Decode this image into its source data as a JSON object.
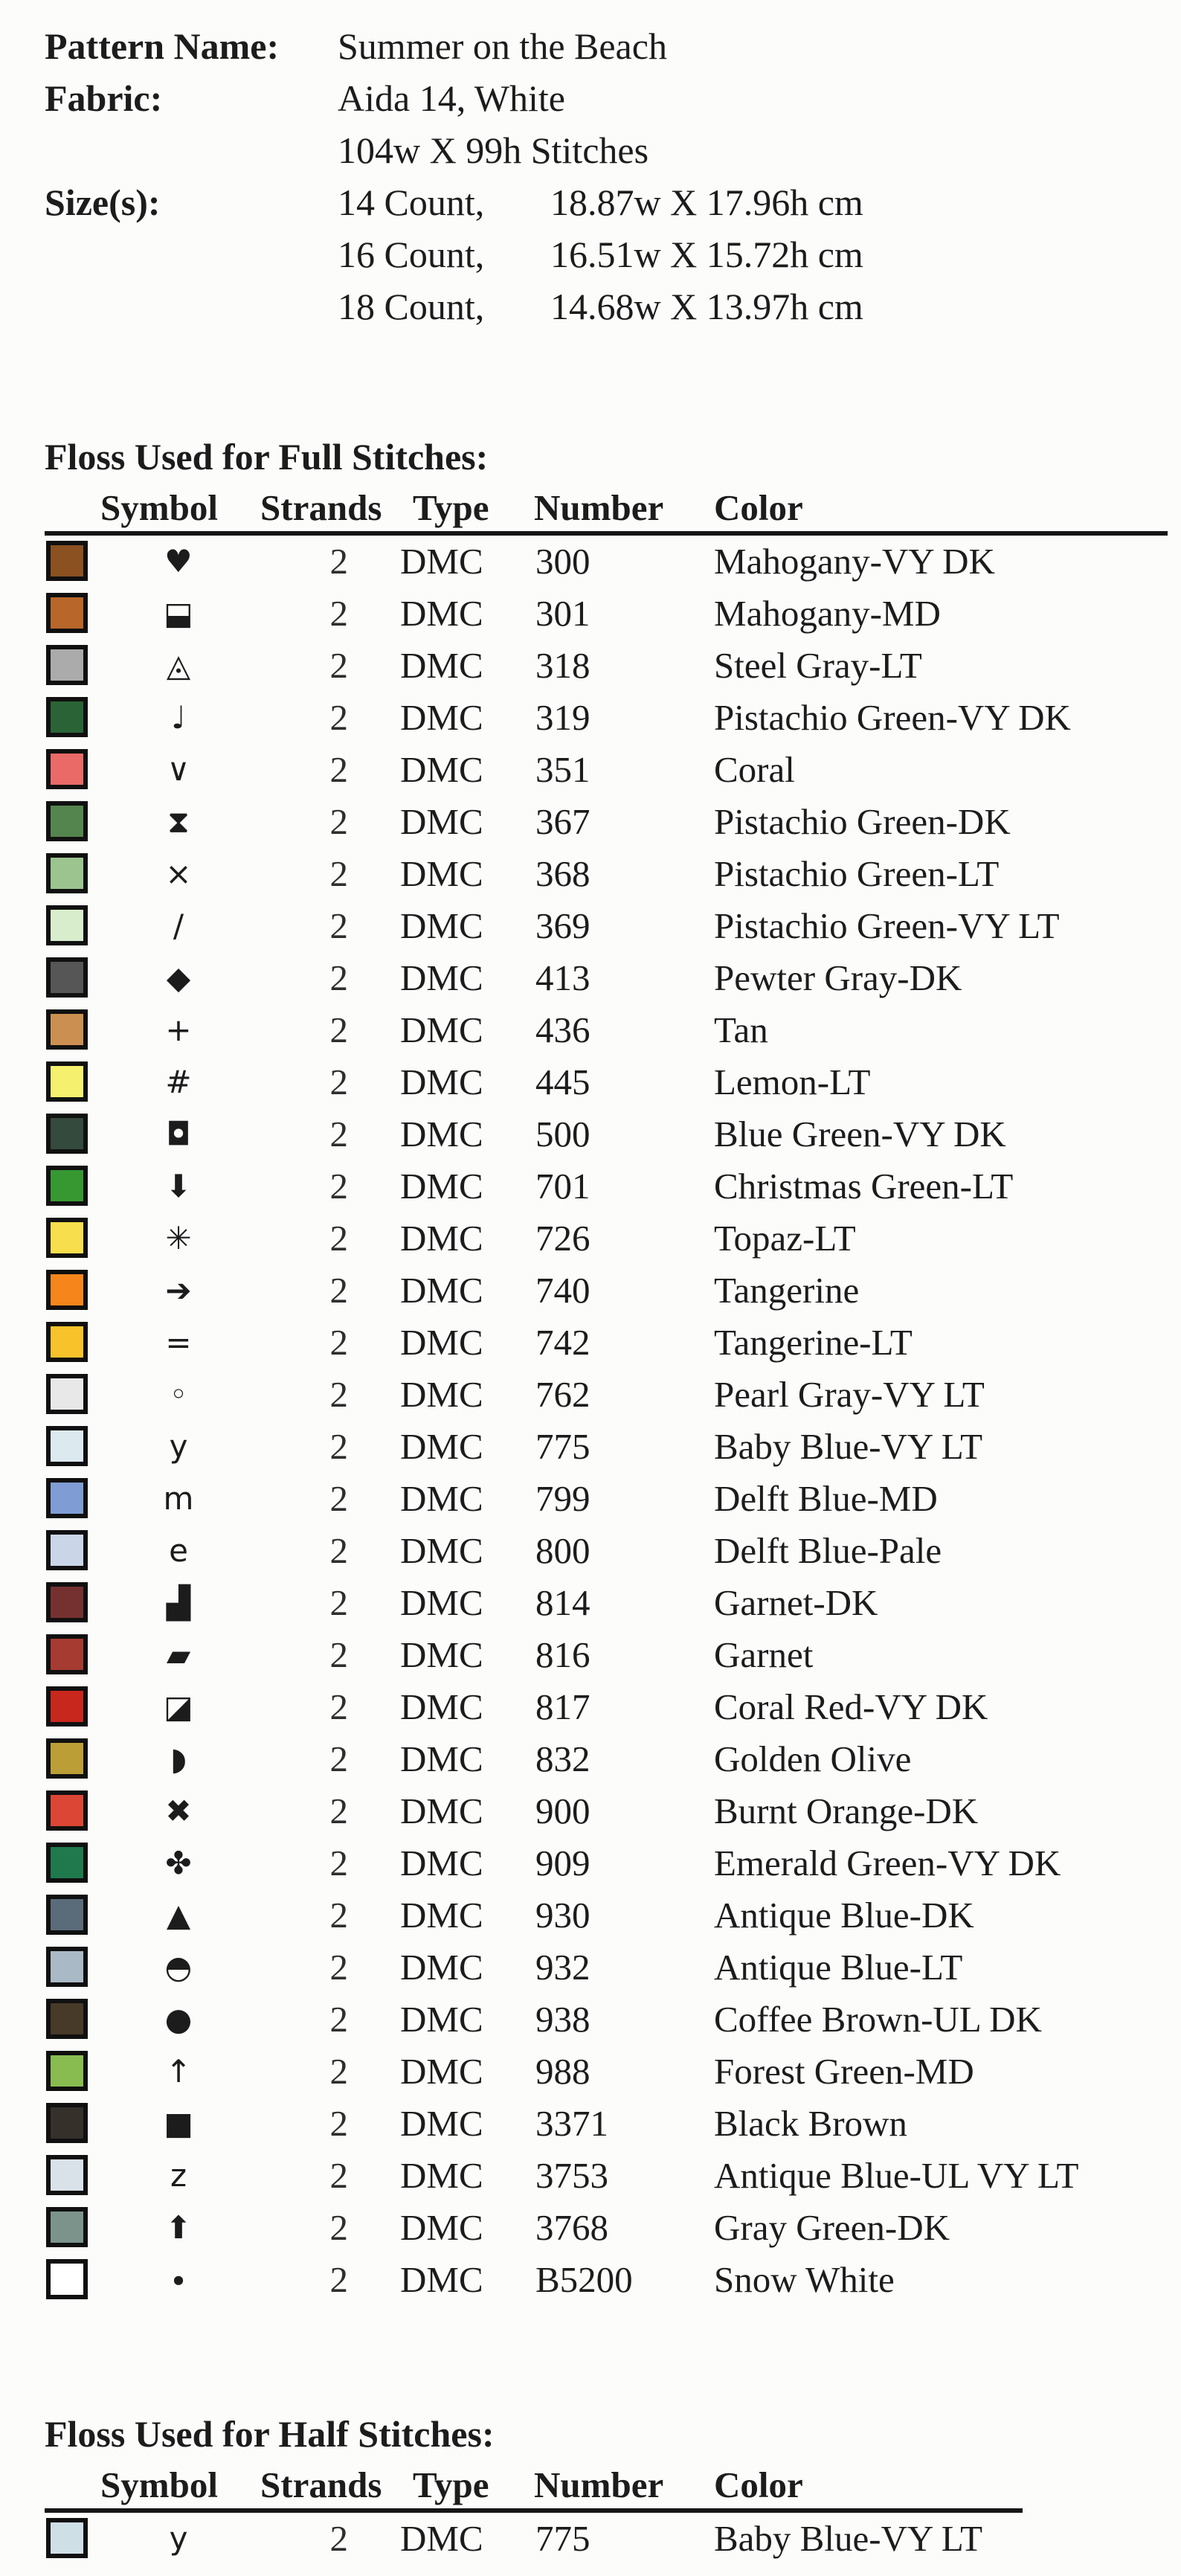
{
  "header": {
    "pattern_label": "Pattern Name:",
    "pattern_value": "Summer on the Beach",
    "fabric_label": "Fabric:",
    "fabric_value": "Aida 14, White",
    "stitch_count": "104w X 99h Stitches",
    "sizes_label": "Size(s):",
    "sizes": [
      {
        "count": "14 Count,",
        "dims": "18.87w X 17.96h cm"
      },
      {
        "count": "16 Count,",
        "dims": "16.51w X 15.72h cm"
      },
      {
        "count": "18 Count,",
        "dims": "14.68w X 13.97h cm"
      }
    ]
  },
  "full_stitches": {
    "title": "Floss Used for Full Stitches:",
    "columns": {
      "symbol": "Symbol",
      "strands": "Strands",
      "type": "Type",
      "number": "Number",
      "color": "Color"
    },
    "rows": [
      {
        "symbol": "♥",
        "swatch": "#8B5121",
        "strands": "2",
        "type": "DMC",
        "number": "300",
        "name": "Mahogany-VY DK"
      },
      {
        "symbol": "⬓",
        "swatch": "#B8662A",
        "strands": "2",
        "type": "DMC",
        "number": "301",
        "name": "Mahogany-MD"
      },
      {
        "symbol": "◬",
        "swatch": "#ABABAB",
        "strands": "2",
        "type": "DMC",
        "number": "318",
        "name": "Steel Gray-LT"
      },
      {
        "symbol": "♩",
        "swatch": "#2A6436",
        "strands": "2",
        "type": "DMC",
        "number": "319",
        "name": "Pistachio Green-VY DK"
      },
      {
        "symbol": "∨",
        "swatch": "#E96A67",
        "strands": "2",
        "type": "DMC",
        "number": "351",
        "name": "Coral"
      },
      {
        "symbol": "⧗",
        "swatch": "#55854E",
        "strands": "2",
        "type": "DMC",
        "number": "367",
        "name": "Pistachio Green-DK"
      },
      {
        "symbol": "×",
        "swatch": "#9CC48F",
        "strands": "2",
        "type": "DMC",
        "number": "368",
        "name": "Pistachio Green-LT"
      },
      {
        "symbol": "/",
        "swatch": "#D7EDCC",
        "strands": "2",
        "type": "DMC",
        "number": "369",
        "name": "Pistachio Green-VY LT"
      },
      {
        "symbol": "◆",
        "swatch": "#565656",
        "strands": "2",
        "type": "DMC",
        "number": "413",
        "name": "Pewter Gray-DK"
      },
      {
        "symbol": "+",
        "swatch": "#CB9051",
        "strands": "2",
        "type": "DMC",
        "number": "436",
        "name": "Tan"
      },
      {
        "symbol": "#",
        "swatch": "#F5F06E",
        "strands": "2",
        "type": "DMC",
        "number": "445",
        "name": "Lemon-LT"
      },
      {
        "symbol": "◘",
        "swatch": "#344A3C",
        "strands": "2",
        "type": "DMC",
        "number": "500",
        "name": "Blue Green-VY DK"
      },
      {
        "symbol": "⬇",
        "swatch": "#379832",
        "strands": "2",
        "type": "DMC",
        "number": "701",
        "name": "Christmas Green-LT"
      },
      {
        "symbol": "✳",
        "swatch": "#F7DE4D",
        "strands": "2",
        "type": "DMC",
        "number": "726",
        "name": "Topaz-LT"
      },
      {
        "symbol": "➔",
        "swatch": "#F6861B",
        "strands": "2",
        "type": "DMC",
        "number": "740",
        "name": "Tangerine"
      },
      {
        "symbol": "=",
        "swatch": "#F8C22B",
        "strands": "2",
        "type": "DMC",
        "number": "742",
        "name": "Tangerine-LT"
      },
      {
        "symbol": "◦",
        "swatch": "#E8E8E8",
        "strands": "2",
        "type": "DMC",
        "number": "762",
        "name": "Pearl Gray-VY LT"
      },
      {
        "symbol": "y",
        "swatch": "#DCE9EF",
        "strands": "2",
        "type": "DMC",
        "number": "775",
        "name": "Baby Blue-VY LT"
      },
      {
        "symbol": "m",
        "swatch": "#7F9DD4",
        "strands": "2",
        "type": "DMC",
        "number": "799",
        "name": "Delft Blue-MD"
      },
      {
        "symbol": "e",
        "swatch": "#CAD6E8",
        "strands": "2",
        "type": "DMC",
        "number": "800",
        "name": "Delft Blue-Pale"
      },
      {
        "symbol": "▟",
        "swatch": "#753130",
        "strands": "2",
        "type": "DMC",
        "number": "814",
        "name": "Garnet-DK"
      },
      {
        "symbol": "▰",
        "swatch": "#A63B31",
        "strands": "2",
        "type": "DMC",
        "number": "816",
        "name": "Garnet"
      },
      {
        "symbol": "◪",
        "swatch": "#C8271D",
        "strands": "2",
        "type": "DMC",
        "number": "817",
        "name": "Coral Red-VY DK"
      },
      {
        "symbol": "◗",
        "swatch": "#BB9E36",
        "strands": "2",
        "type": "DMC",
        "number": "832",
        "name": "Golden Olive"
      },
      {
        "symbol": "✖",
        "swatch": "#DC4634",
        "strands": "2",
        "type": "DMC",
        "number": "900",
        "name": "Burnt Orange-DK"
      },
      {
        "symbol": "✤",
        "swatch": "#20794C",
        "strands": "2",
        "type": "DMC",
        "number": "909",
        "name": "Emerald Green-VY DK"
      },
      {
        "symbol": "▲",
        "swatch": "#5A6B7A",
        "strands": "2",
        "type": "DMC",
        "number": "930",
        "name": "Antique Blue-DK"
      },
      {
        "symbol": "◓",
        "swatch": "#A9B9C6",
        "strands": "2",
        "type": "DMC",
        "number": "932",
        "name": "Antique Blue-LT"
      },
      {
        "symbol": "●",
        "swatch": "#483A29",
        "strands": "2",
        "type": "DMC",
        "number": "938",
        "name": "Coffee Brown-UL DK"
      },
      {
        "symbol": "↑",
        "swatch": "#89BC50",
        "strands": "2",
        "type": "DMC",
        "number": "988",
        "name": "Forest Green-MD"
      },
      {
        "symbol": "■",
        "swatch": "#35302A",
        "strands": "2",
        "type": "DMC",
        "number": "3371",
        "name": "Black Brown"
      },
      {
        "symbol": "z",
        "swatch": "#D9E2E8",
        "strands": "2",
        "type": "DMC",
        "number": "3753",
        "name": "Antique Blue-UL VY LT"
      },
      {
        "symbol": "⬆",
        "swatch": "#7C938C",
        "strands": "2",
        "type": "DMC",
        "number": "3768",
        "name": "Gray Green-DK"
      },
      {
        "symbol": "∙",
        "swatch": "#FFFFFF",
        "strands": "2",
        "type": "DMC",
        "number": "B5200",
        "name": "Snow White"
      }
    ]
  },
  "half_stitches": {
    "title": "Floss Used for Half Stitches:",
    "columns": {
      "symbol": "Symbol",
      "strands": "Strands",
      "type": "Type",
      "number": "Number",
      "color": "Color"
    },
    "rows": [
      {
        "symbol": "y",
        "swatch": "#CFDFE6",
        "strands": "2",
        "type": "DMC",
        "number": "775",
        "name": "Baby Blue-VY LT"
      }
    ]
  }
}
